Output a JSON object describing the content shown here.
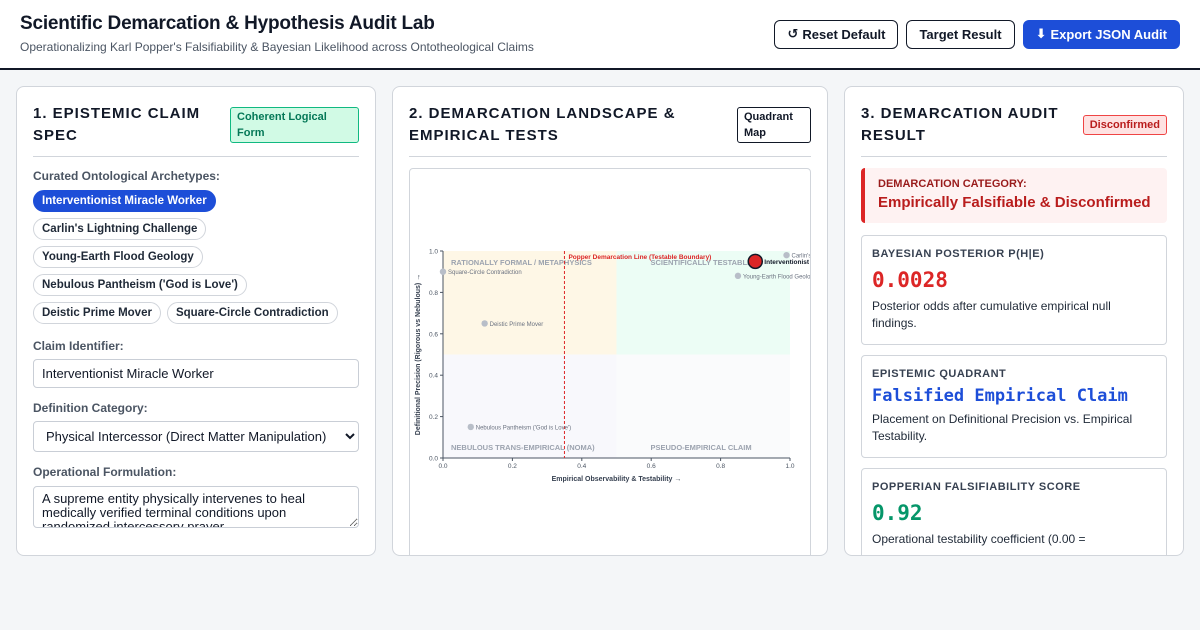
{
  "header": {
    "title": "Scientific Demarcation & Hypothesis Audit Lab",
    "subtitle": "Operationalizing Karl Popper's Falsifiability & Bayesian Likelihood across Ontotheological Claims",
    "actions": {
      "reset": {
        "icon": "reset-icon",
        "glyph": "↺",
        "label": "Reset Default"
      },
      "target": {
        "label": "Target Result"
      },
      "export": {
        "icon": "download-icon",
        "glyph": "⬇",
        "label": "Export JSON Audit"
      }
    }
  },
  "panel1": {
    "title": "1. Epistemic Claim Spec",
    "badge": "Coherent Logical Form",
    "archetypes_label": "Curated Ontological Archetypes:",
    "archetypes": [
      "Interventionist Miracle Worker",
      "Carlin's Lightning Challenge",
      "Young-Earth Flood Geology",
      "Nebulous Pantheism ('God is Love')",
      "Deistic Prime Mover",
      "Square-Circle Contradiction"
    ],
    "active_archetype": "Interventionist Miracle Worker",
    "claim_id_label": "Claim Identifier:",
    "claim_id_value": "Interventionist Miracle Worker",
    "definition_label": "Definition Category:",
    "definition_value": "Physical Intercessor (Direct Matter Manipulation)",
    "formulation_label": "Operational Formulation:",
    "formulation_value": "A supreme entity physically intervenes to heal medically verified terminal conditions upon randomized intercessory prayer."
  },
  "panel2": {
    "title": "2. Demarcation Landscape & Empirical Tests",
    "badge": "Quadrant Map"
  },
  "chart_data": {
    "type": "scatter",
    "xlabel": "Empirical Observability & Testability →",
    "ylabel": "Definitional Precision (Rigorous vs Nebulous) →",
    "xlim": [
      0,
      1
    ],
    "ylim": [
      0,
      1
    ],
    "xticks": [
      "0.0",
      "0.2",
      "0.4",
      "0.6",
      "0.8",
      "1.0"
    ],
    "yticks": [
      "0.0",
      "0.2",
      "0.4",
      "0.6",
      "0.8",
      "1.0"
    ],
    "quadrants": [
      {
        "label": "RATIONALLY FORMAL / METAPHYSICS",
        "color": "#fef7e6"
      },
      {
        "label": "SCIENTIFICALLY TESTABLE",
        "color": "#ecfdf5"
      },
      {
        "label": "NEBULOUS TRANS-EMPIRICAL (NOMA)",
        "color": "#f8f8fc"
      },
      {
        "label": "PSEUDO-EMPIRICAL CLAIM",
        "color": "#fafbfc"
      }
    ],
    "threshold": {
      "x": 0.35,
      "label": "Popper Demarcation Line (Testable Boundary)",
      "color": "#dc2626"
    },
    "points": [
      {
        "label": "Square-Circle Contradiction",
        "x": 0.0,
        "y": 0.9
      },
      {
        "label": "Deistic Prime Mover",
        "x": 0.12,
        "y": 0.65
      },
      {
        "label": "Nebulous Pantheism ('God is Love')",
        "x": 0.08,
        "y": 0.15
      },
      {
        "label": "Carlin's Lightning Challenge",
        "x": 0.99,
        "y": 0.98
      },
      {
        "label": "Young-Earth Flood Geology",
        "x": 0.85,
        "y": 0.88
      },
      {
        "label": "Interventionist",
        "x": 0.9,
        "y": 0.95,
        "highlight": true
      }
    ]
  },
  "panel3": {
    "title": "3. Demarcation Audit Result",
    "badge": "Disconfirmed",
    "category_label": "DEMARCATION CATEGORY:",
    "category_value": "Empirically Falsifiable & Disconfirmed",
    "cards": [
      {
        "label": "BAYESIAN POSTERIOR P(H|E)",
        "value": "0.0028",
        "color": "#dc2626",
        "desc": "Posterior odds after cumulative empirical null findings."
      },
      {
        "label": "EPISTEMIC QUADRANT",
        "value": "Falsified Empirical Claim",
        "color": "#1d4ed8",
        "desc": "Placement on Definitional Precision vs. Empirical Testability."
      },
      {
        "label": "POPPERIAN FALSIFIABILITY SCORE",
        "value": "0.92",
        "color": "#059669",
        "desc": "Operational testability coefficient (0.00 ="
      }
    ]
  }
}
